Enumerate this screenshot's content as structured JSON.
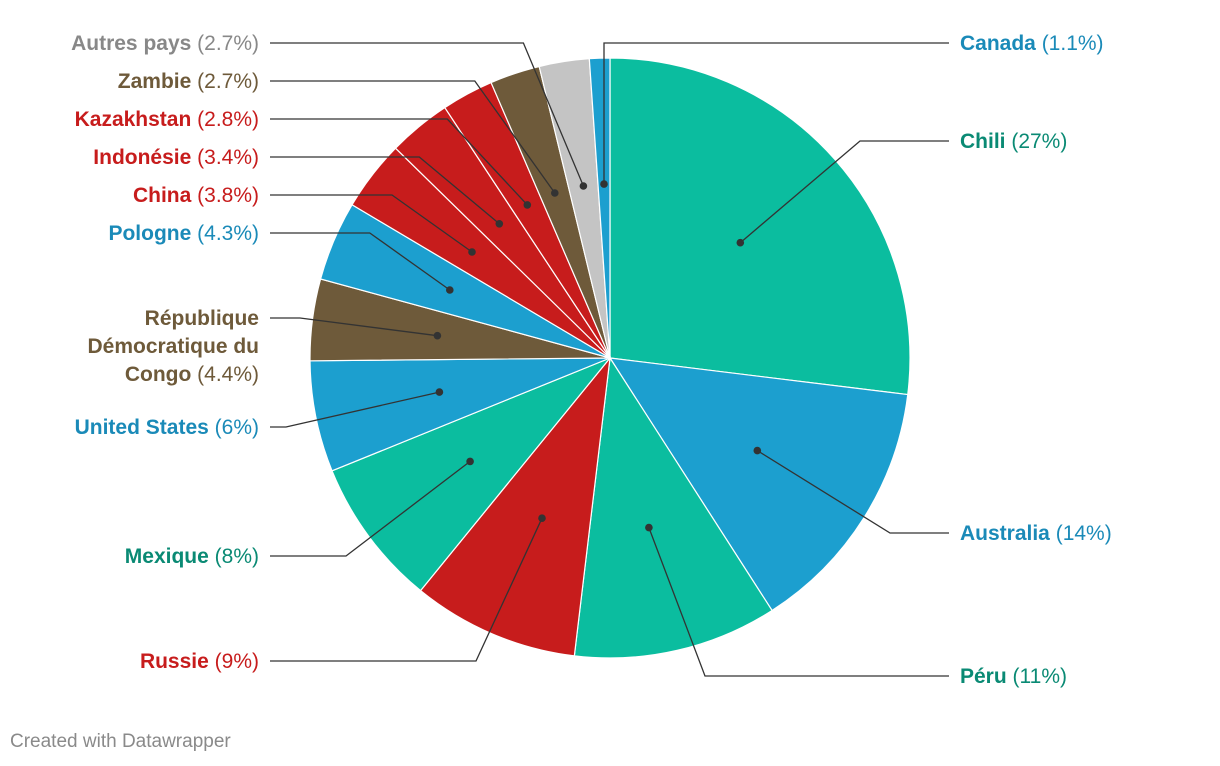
{
  "chart_data": {
    "type": "pie",
    "start": "top",
    "direction": "clockwise",
    "slices": [
      {
        "label": "Chili",
        "pct_text": "(27%)",
        "value": 27,
        "color": "#0bbd9f",
        "text_color": "#0a8a74",
        "side": "right"
      },
      {
        "label": "Australia",
        "pct_text": "(14%)",
        "value": 14,
        "color": "#1c9fcf",
        "text_color": "#1a8ab8",
        "side": "right"
      },
      {
        "label": "Péru",
        "pct_text": "(11%)",
        "value": 11,
        "color": "#0bbd9f",
        "text_color": "#0a8a74",
        "side": "right"
      },
      {
        "label": "Russie",
        "pct_text": "(9%)",
        "value": 9,
        "color": "#c71c1c",
        "text_color": "#c71c1c",
        "side": "left"
      },
      {
        "label": "Mexique",
        "pct_text": "(8%)",
        "value": 8,
        "color": "#0bbd9f",
        "text_color": "#0a8a74",
        "side": "left"
      },
      {
        "label": "United States",
        "pct_text": "(6%)",
        "value": 6,
        "color": "#1c9fcf",
        "text_color": "#1a8ab8",
        "side": "left"
      },
      {
        "label": "République Démocratique du Congo",
        "label_lines": [
          "République",
          "Démocratique du",
          "Congo"
        ],
        "pct_text": "(4.4%)",
        "value": 4.4,
        "color": "#6e5a3a",
        "text_color": "#6e5a3a",
        "side": "left"
      },
      {
        "label": "Pologne",
        "pct_text": "(4.3%)",
        "value": 4.3,
        "color": "#1c9fcf",
        "text_color": "#1a8ab8",
        "side": "left"
      },
      {
        "label": "China",
        "pct_text": "(3.8%)",
        "value": 3.8,
        "color": "#c71c1c",
        "text_color": "#c71c1c",
        "side": "left"
      },
      {
        "label": "Indonésie",
        "pct_text": "(3.4%)",
        "value": 3.4,
        "color": "#c71c1c",
        "text_color": "#c71c1c",
        "side": "left"
      },
      {
        "label": "Kazakhstan",
        "pct_text": "(2.8%)",
        "value": 2.8,
        "color": "#c71c1c",
        "text_color": "#c71c1c",
        "side": "left"
      },
      {
        "label": "Zambie",
        "pct_text": "(2.7%)",
        "value": 2.7,
        "color": "#6e5a3a",
        "text_color": "#6e5a3a",
        "side": "left"
      },
      {
        "label": "Autres pays",
        "pct_text": "(2.7%)",
        "value": 2.7,
        "color": "#c4c4c4",
        "text_color": "#888888",
        "side": "left"
      },
      {
        "label": "Canada",
        "pct_text": "(1.1%)",
        "value": 1.1,
        "color": "#1c9fcf",
        "text_color": "#1a8ab8",
        "side": "right"
      }
    ]
  },
  "footer": {
    "credit": "Created with Datawrapper"
  }
}
